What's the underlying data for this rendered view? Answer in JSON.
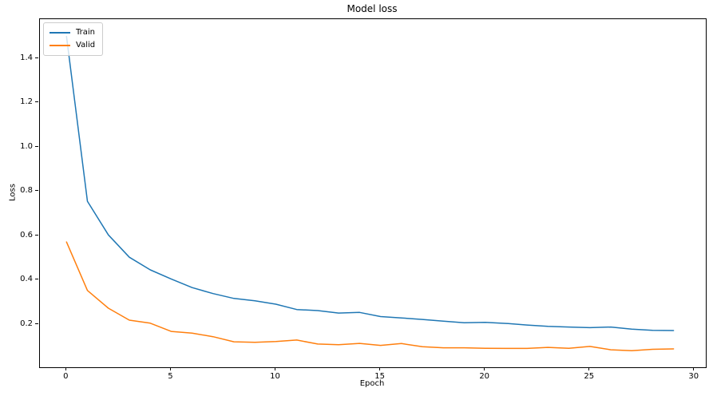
{
  "chart_data": {
    "type": "line",
    "title": "Model loss",
    "xlabel": "Epoch",
    "ylabel": "Loss",
    "grid": false,
    "legend_position": "upper left",
    "xlim": [
      -1.27,
      30.54
    ],
    "ylim": [
      0.005,
      1.578
    ],
    "xticks": [
      0,
      5,
      10,
      15,
      20,
      25,
      30
    ],
    "yticks": [
      0.2,
      0.4,
      0.6,
      0.8,
      1.0,
      1.2,
      1.4
    ],
    "x": [
      0,
      1,
      2,
      3,
      4,
      5,
      6,
      7,
      8,
      9,
      10,
      11,
      12,
      13,
      14,
      15,
      16,
      17,
      18,
      19,
      20,
      21,
      22,
      23,
      24,
      25,
      26,
      27,
      28,
      29
    ],
    "series": [
      {
        "name": "Train",
        "color": "#1f77b4",
        "values": [
          1.5,
          0.755,
          0.603,
          0.502,
          0.445,
          0.404,
          0.365,
          0.338,
          0.316,
          0.305,
          0.29,
          0.266,
          0.261,
          0.25,
          0.253,
          0.234,
          0.228,
          0.221,
          0.213,
          0.206,
          0.208,
          0.203,
          0.196,
          0.19,
          0.187,
          0.184,
          0.187,
          0.177,
          0.172,
          0.171
        ]
      },
      {
        "name": "Valid",
        "color": "#ff7f0e",
        "values": [
          0.571,
          0.352,
          0.272,
          0.218,
          0.204,
          0.167,
          0.159,
          0.143,
          0.12,
          0.118,
          0.121,
          0.128,
          0.11,
          0.107,
          0.113,
          0.104,
          0.112,
          0.098,
          0.093,
          0.093,
          0.091,
          0.09,
          0.09,
          0.095,
          0.091,
          0.099,
          0.084,
          0.08,
          0.086,
          0.088
        ]
      }
    ]
  }
}
